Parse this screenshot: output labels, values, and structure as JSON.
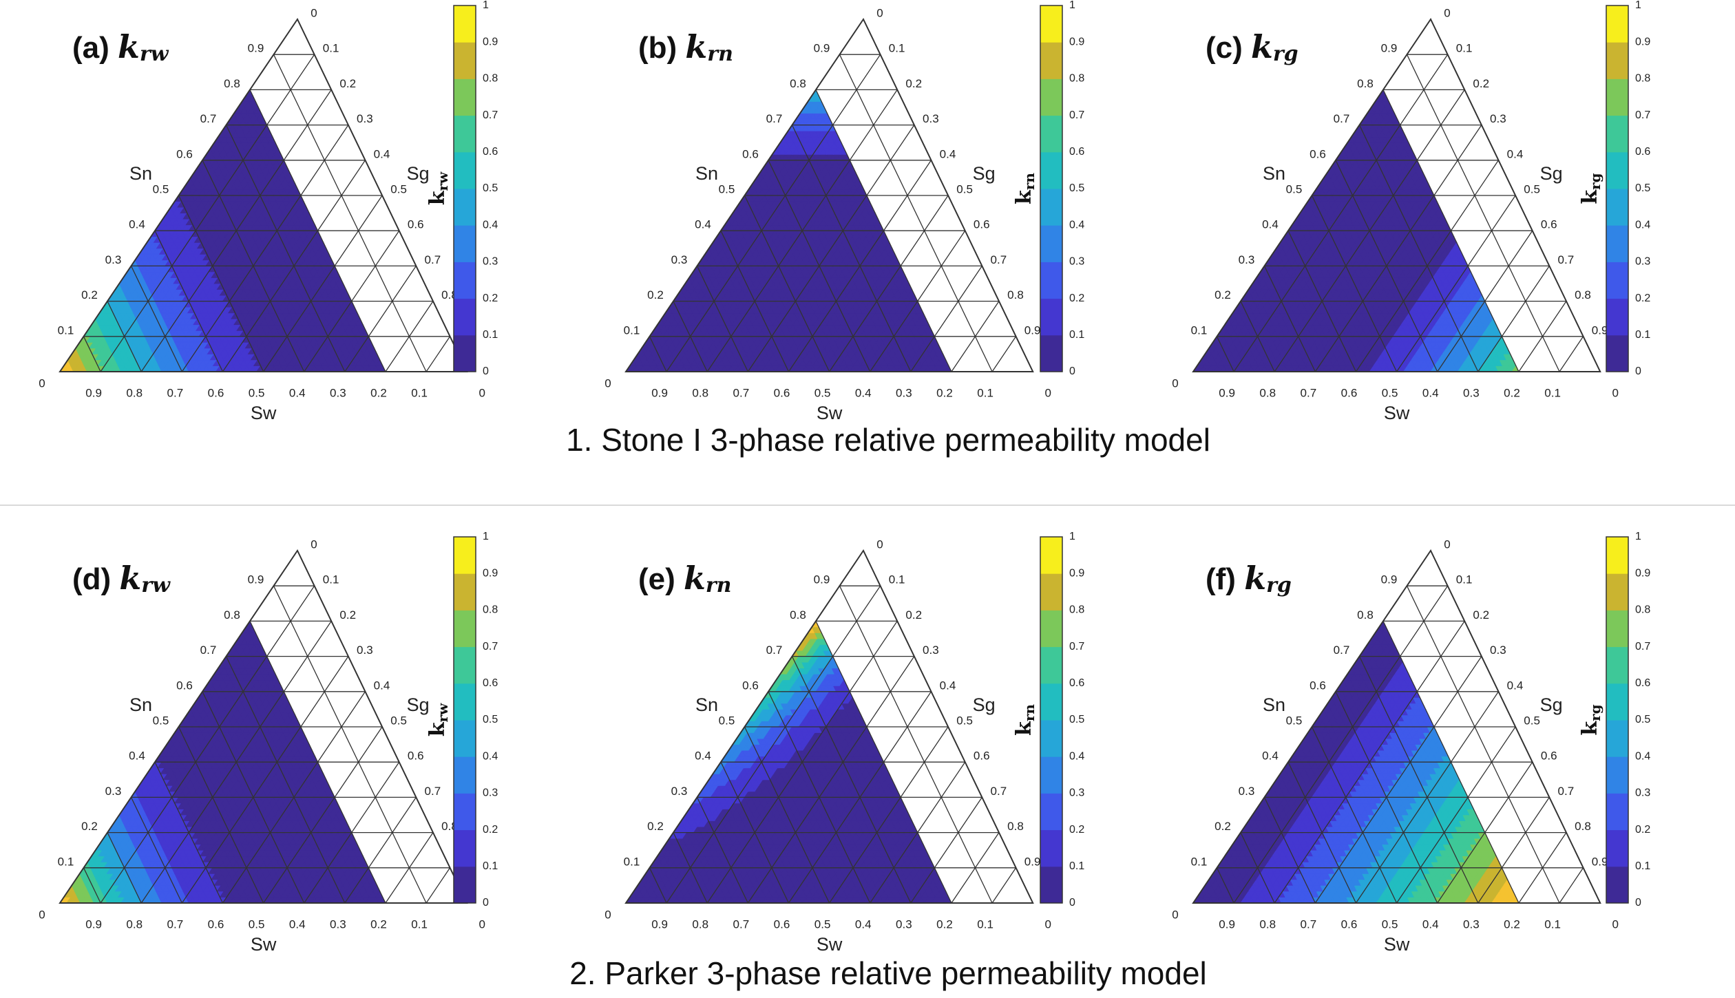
{
  "colormap": [
    "#3e2a96",
    "#4437d0",
    "#3f59ea",
    "#3084e6",
    "#26a6d8",
    "#22bdc0",
    "#3ec898",
    "#7cc85a",
    "#cab430",
    "#f5c230",
    "#f7ee1c"
  ],
  "contour_levels": [
    0,
    0.1,
    0.2,
    0.3,
    0.4,
    0.5,
    0.6,
    0.7,
    0.8,
    0.9,
    1
  ],
  "axis_ticks": [
    "0",
    "0.1",
    "0.2",
    "0.3",
    "0.4",
    "0.5",
    "0.6",
    "0.7",
    "0.8",
    "0.9"
  ],
  "colorbar_ticks": [
    "0",
    "0.1",
    "0.2",
    "0.3",
    "0.4",
    "0.5",
    "0.6",
    "0.7",
    "0.8",
    "0.9",
    "1"
  ],
  "axis_names": {
    "left": "Sn",
    "right": "Sg",
    "bottom": "Sw"
  },
  "row_titles": [
    "1. Stone I 3-phase relative permeability model",
    "2. Parker 3-phase relative permeability model"
  ],
  "chart_data": [
    {
      "type": "heatmap",
      "row": 0,
      "panel": "(a)",
      "k": "k",
      "sub": "rw",
      "cb_label": "k",
      "cb_sub": "rw",
      "x_label": "Sw",
      "left_label": "Sn",
      "right_label": "Sg",
      "domain": {
        "sw_min": 0.2,
        "sn_max": 0.8,
        "sg_max": 0.8
      },
      "clim": [
        0,
        1
      ],
      "model": "stone_krw"
    },
    {
      "type": "heatmap",
      "row": 0,
      "panel": "(b)",
      "k": "k",
      "sub": "rn",
      "cb_label": "k",
      "cb_sub": "rn",
      "x_label": "Sw",
      "left_label": "Sn",
      "right_label": "Sg",
      "domain": {
        "sw_min": 0.2,
        "sn_max": 0.8,
        "sg_max": 0.8
      },
      "clim": [
        0,
        1
      ],
      "model": "stone_krn"
    },
    {
      "type": "heatmap",
      "row": 0,
      "panel": "(c)",
      "k": "k",
      "sub": "rg",
      "cb_label": "k",
      "cb_sub": "rg",
      "x_label": "Sw",
      "left_label": "Sn",
      "right_label": "Sg",
      "domain": {
        "sw_min": 0.2,
        "sn_max": 0.8,
        "sg_max": 0.8
      },
      "clim": [
        0,
        1
      ],
      "model": "stone_krg"
    },
    {
      "type": "heatmap",
      "row": 1,
      "panel": "(d)",
      "k": "k",
      "sub": "rw",
      "cb_label": "k",
      "cb_sub": "rw",
      "x_label": "Sw",
      "left_label": "Sn",
      "right_label": "Sg",
      "domain": {
        "sw_min": 0.2,
        "sn_max": 0.8,
        "sg_max": 0.8
      },
      "clim": [
        0,
        1
      ],
      "model": "parker_krw"
    },
    {
      "type": "heatmap",
      "row": 1,
      "panel": "(e)",
      "k": "k",
      "sub": "rn",
      "cb_label": "k",
      "cb_sub": "rn",
      "x_label": "Sw",
      "left_label": "Sn",
      "right_label": "Sg",
      "domain": {
        "sw_min": 0.2,
        "sn_max": 0.8,
        "sg_max": 0.8
      },
      "clim": [
        0,
        1
      ],
      "model": "parker_krn"
    },
    {
      "type": "heatmap",
      "row": 1,
      "panel": "(f)",
      "k": "k",
      "sub": "rg",
      "cb_label": "k",
      "cb_sub": "rg",
      "x_label": "Sw",
      "left_label": "Sn",
      "right_label": "Sg",
      "domain": {
        "sw_min": 0.2,
        "sn_max": 0.8,
        "sg_max": 0.8
      },
      "clim": [
        0,
        1
      ],
      "model": "parker_krg"
    }
  ]
}
